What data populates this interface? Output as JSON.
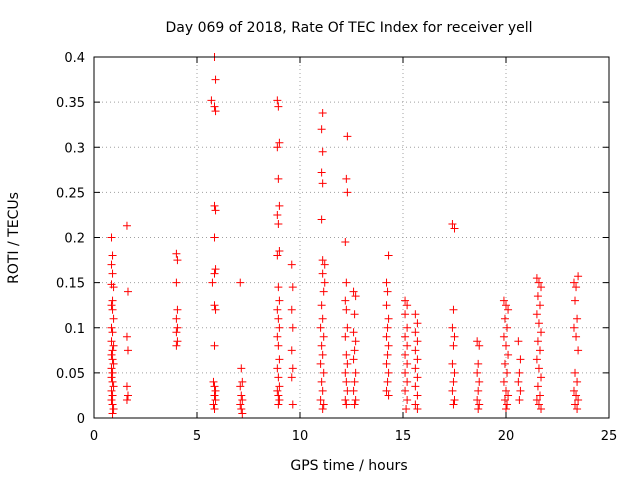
{
  "chart_data": {
    "type": "scatter",
    "title": "Day 069 of 2018, Rate Of TEC Index for receiver yell",
    "xlabel": "GPS time / hours",
    "ylabel": "ROTI / TECUs",
    "xlim": [
      0,
      25
    ],
    "ylim": [
      0,
      0.4
    ],
    "xticks": [
      0,
      5,
      10,
      15,
      20,
      25
    ],
    "xtick_labels": [
      "0",
      "5",
      "10",
      "15",
      "20",
      "25"
    ],
    "yticks": [
      0,
      0.05,
      0.1,
      0.15,
      0.2,
      0.25,
      0.3,
      0.35,
      0.4
    ],
    "ytick_labels": [
      "0",
      "0.05",
      "0.1",
      "0.15",
      "0.2",
      "0.25",
      "0.3",
      "0.35",
      "0.4"
    ],
    "grid": true,
    "marker": "+",
    "color": "#ff0000",
    "series": [
      {
        "name": "ROTI",
        "points": [
          [
            0.85,
            0.2
          ],
          [
            0.9,
            0.18
          ],
          [
            0.85,
            0.17
          ],
          [
            0.9,
            0.16
          ],
          [
            0.85,
            0.148
          ],
          [
            0.95,
            0.145
          ],
          [
            0.9,
            0.13
          ],
          [
            0.85,
            0.125
          ],
          [
            0.9,
            0.12
          ],
          [
            0.95,
            0.11
          ],
          [
            0.85,
            0.1
          ],
          [
            0.9,
            0.095
          ],
          [
            0.85,
            0.085
          ],
          [
            0.95,
            0.08
          ],
          [
            0.9,
            0.075
          ],
          [
            0.85,
            0.07
          ],
          [
            0.9,
            0.065
          ],
          [
            0.95,
            0.06
          ],
          [
            0.85,
            0.055
          ],
          [
            0.9,
            0.05
          ],
          [
            0.85,
            0.045
          ],
          [
            0.9,
            0.04
          ],
          [
            0.95,
            0.035
          ],
          [
            0.85,
            0.03
          ],
          [
            0.9,
            0.025
          ],
          [
            0.85,
            0.02
          ],
          [
            0.9,
            0.015
          ],
          [
            0.95,
            0.01
          ],
          [
            0.9,
            0.005
          ],
          [
            1.6,
            0.213
          ],
          [
            1.65,
            0.14
          ],
          [
            1.6,
            0.09
          ],
          [
            1.65,
            0.075
          ],
          [
            1.6,
            0.035
          ],
          [
            1.65,
            0.025
          ],
          [
            1.6,
            0.02
          ],
          [
            4.0,
            0.182
          ],
          [
            4.05,
            0.175
          ],
          [
            4.0,
            0.15
          ],
          [
            4.05,
            0.12
          ],
          [
            4.0,
            0.11
          ],
          [
            4.05,
            0.1
          ],
          [
            4.0,
            0.095
          ],
          [
            4.05,
            0.085
          ],
          [
            4.0,
            0.08
          ],
          [
            5.7,
            0.352
          ],
          [
            5.85,
            0.4
          ],
          [
            5.9,
            0.375
          ],
          [
            5.85,
            0.345
          ],
          [
            5.9,
            0.34
          ],
          [
            5.85,
            0.235
          ],
          [
            5.9,
            0.23
          ],
          [
            5.85,
            0.2
          ],
          [
            5.9,
            0.165
          ],
          [
            5.85,
            0.16
          ],
          [
            5.75,
            0.15
          ],
          [
            5.85,
            0.125
          ],
          [
            5.9,
            0.12
          ],
          [
            5.85,
            0.08
          ],
          [
            5.8,
            0.04
          ],
          [
            5.85,
            0.035
          ],
          [
            5.9,
            0.03
          ],
          [
            5.85,
            0.025
          ],
          [
            5.9,
            0.02
          ],
          [
            5.8,
            0.015
          ],
          [
            5.85,
            0.01
          ],
          [
            7.1,
            0.15
          ],
          [
            7.15,
            0.055
          ],
          [
            7.2,
            0.04
          ],
          [
            7.1,
            0.035
          ],
          [
            7.15,
            0.025
          ],
          [
            7.2,
            0.02
          ],
          [
            7.1,
            0.015
          ],
          [
            7.15,
            0.01
          ],
          [
            7.2,
            0.005
          ],
          [
            8.9,
            0.352
          ],
          [
            8.95,
            0.345
          ],
          [
            9.0,
            0.305
          ],
          [
            8.9,
            0.3
          ],
          [
            8.95,
            0.265
          ],
          [
            9.0,
            0.235
          ],
          [
            8.9,
            0.225
          ],
          [
            8.95,
            0.215
          ],
          [
            9.0,
            0.185
          ],
          [
            8.9,
            0.18
          ],
          [
            8.95,
            0.145
          ],
          [
            9.0,
            0.13
          ],
          [
            8.9,
            0.12
          ],
          [
            8.95,
            0.11
          ],
          [
            9.0,
            0.1
          ],
          [
            8.9,
            0.09
          ],
          [
            8.95,
            0.08
          ],
          [
            9.0,
            0.065
          ],
          [
            8.9,
            0.055
          ],
          [
            8.95,
            0.045
          ],
          [
            9.0,
            0.035
          ],
          [
            8.9,
            0.03
          ],
          [
            8.95,
            0.025
          ],
          [
            9.0,
            0.02
          ],
          [
            8.95,
            0.015
          ],
          [
            9.6,
            0.17
          ],
          [
            9.65,
            0.145
          ],
          [
            9.6,
            0.12
          ],
          [
            9.65,
            0.1
          ],
          [
            9.6,
            0.075
          ],
          [
            9.65,
            0.055
          ],
          [
            9.6,
            0.045
          ],
          [
            9.65,
            0.015
          ],
          [
            11.1,
            0.338
          ],
          [
            11.05,
            0.32
          ],
          [
            11.1,
            0.295
          ],
          [
            11.05,
            0.272
          ],
          [
            11.1,
            0.26
          ],
          [
            11.05,
            0.22
          ],
          [
            11.1,
            0.175
          ],
          [
            11.2,
            0.17
          ],
          [
            11.1,
            0.16
          ],
          [
            11.2,
            0.15
          ],
          [
            11.15,
            0.14
          ],
          [
            11.05,
            0.125
          ],
          [
            11.1,
            0.11
          ],
          [
            11.0,
            0.1
          ],
          [
            11.15,
            0.09
          ],
          [
            11.05,
            0.08
          ],
          [
            11.1,
            0.07
          ],
          [
            11.0,
            0.06
          ],
          [
            11.15,
            0.05
          ],
          [
            11.05,
            0.04
          ],
          [
            11.1,
            0.03
          ],
          [
            11.0,
            0.02
          ],
          [
            11.15,
            0.015
          ],
          [
            11.1,
            0.01
          ],
          [
            12.2,
            0.195
          ],
          [
            12.3,
            0.312
          ],
          [
            12.25,
            0.265
          ],
          [
            12.3,
            0.25
          ],
          [
            12.25,
            0.15
          ],
          [
            12.2,
            0.13
          ],
          [
            12.25,
            0.12
          ],
          [
            12.3,
            0.1
          ],
          [
            12.2,
            0.09
          ],
          [
            12.25,
            0.07
          ],
          [
            12.3,
            0.06
          ],
          [
            12.2,
            0.05
          ],
          [
            12.25,
            0.04
          ],
          [
            12.3,
            0.03
          ],
          [
            12.2,
            0.02
          ],
          [
            12.25,
            0.015
          ],
          [
            12.6,
            0.14
          ],
          [
            12.7,
            0.135
          ],
          [
            12.65,
            0.115
          ],
          [
            12.6,
            0.095
          ],
          [
            12.7,
            0.085
          ],
          [
            12.65,
            0.075
          ],
          [
            12.6,
            0.065
          ],
          [
            12.7,
            0.05
          ],
          [
            12.65,
            0.04
          ],
          [
            12.6,
            0.03
          ],
          [
            12.7,
            0.02
          ],
          [
            12.65,
            0.015
          ],
          [
            14.2,
            0.15
          ],
          [
            14.3,
            0.18
          ],
          [
            14.25,
            0.14
          ],
          [
            14.2,
            0.125
          ],
          [
            14.3,
            0.11
          ],
          [
            14.25,
            0.1
          ],
          [
            14.2,
            0.09
          ],
          [
            14.3,
            0.08
          ],
          [
            14.25,
            0.07
          ],
          [
            14.2,
            0.06
          ],
          [
            14.3,
            0.05
          ],
          [
            14.25,
            0.04
          ],
          [
            14.2,
            0.03
          ],
          [
            14.3,
            0.025
          ],
          [
            15.1,
            0.13
          ],
          [
            15.2,
            0.125
          ],
          [
            15.1,
            0.115
          ],
          [
            15.2,
            0.1
          ],
          [
            15.1,
            0.09
          ],
          [
            15.2,
            0.08
          ],
          [
            15.1,
            0.07
          ],
          [
            15.2,
            0.06
          ],
          [
            15.1,
            0.05
          ],
          [
            15.2,
            0.04
          ],
          [
            15.1,
            0.03
          ],
          [
            15.2,
            0.02
          ],
          [
            15.15,
            0.01
          ],
          [
            15.6,
            0.115
          ],
          [
            15.7,
            0.105
          ],
          [
            15.6,
            0.095
          ],
          [
            15.7,
            0.085
          ],
          [
            15.6,
            0.075
          ],
          [
            15.7,
            0.065
          ],
          [
            15.6,
            0.055
          ],
          [
            15.7,
            0.045
          ],
          [
            15.6,
            0.035
          ],
          [
            15.7,
            0.025
          ],
          [
            15.6,
            0.015
          ],
          [
            15.7,
            0.01
          ],
          [
            17.4,
            0.215
          ],
          [
            17.5,
            0.21
          ],
          [
            17.45,
            0.12
          ],
          [
            17.4,
            0.1
          ],
          [
            17.5,
            0.09
          ],
          [
            17.45,
            0.08
          ],
          [
            17.4,
            0.06
          ],
          [
            17.5,
            0.05
          ],
          [
            17.45,
            0.04
          ],
          [
            17.4,
            0.03
          ],
          [
            17.5,
            0.02
          ],
          [
            17.45,
            0.015
          ],
          [
            18.6,
            0.085
          ],
          [
            18.7,
            0.08
          ],
          [
            18.65,
            0.06
          ],
          [
            18.6,
            0.05
          ],
          [
            18.7,
            0.04
          ],
          [
            18.65,
            0.03
          ],
          [
            18.6,
            0.02
          ],
          [
            18.7,
            0.015
          ],
          [
            18.65,
            0.01
          ],
          [
            19.9,
            0.13
          ],
          [
            20.0,
            0.125
          ],
          [
            20.1,
            0.12
          ],
          [
            19.95,
            0.11
          ],
          [
            20.05,
            0.1
          ],
          [
            19.9,
            0.09
          ],
          [
            20.0,
            0.08
          ],
          [
            20.1,
            0.07
          ],
          [
            19.95,
            0.06
          ],
          [
            20.05,
            0.05
          ],
          [
            19.9,
            0.04
          ],
          [
            20.0,
            0.03
          ],
          [
            20.1,
            0.025
          ],
          [
            19.95,
            0.02
          ],
          [
            20.05,
            0.015
          ],
          [
            20.0,
            0.01
          ],
          [
            20.6,
            0.085
          ],
          [
            20.7,
            0.065
          ],
          [
            20.65,
            0.05
          ],
          [
            20.6,
            0.04
          ],
          [
            20.7,
            0.03
          ],
          [
            20.65,
            0.02
          ],
          [
            21.5,
            0.155
          ],
          [
            21.6,
            0.15
          ],
          [
            21.7,
            0.145
          ],
          [
            21.55,
            0.135
          ],
          [
            21.65,
            0.125
          ],
          [
            21.5,
            0.115
          ],
          [
            21.6,
            0.105
          ],
          [
            21.7,
            0.095
          ],
          [
            21.55,
            0.085
          ],
          [
            21.65,
            0.075
          ],
          [
            21.5,
            0.065
          ],
          [
            21.6,
            0.055
          ],
          [
            21.7,
            0.045
          ],
          [
            21.55,
            0.035
          ],
          [
            21.65,
            0.025
          ],
          [
            21.5,
            0.02
          ],
          [
            21.6,
            0.015
          ],
          [
            21.7,
            0.01
          ],
          [
            23.3,
            0.15
          ],
          [
            23.4,
            0.145
          ],
          [
            23.5,
            0.157
          ],
          [
            23.35,
            0.13
          ],
          [
            23.45,
            0.11
          ],
          [
            23.3,
            0.1
          ],
          [
            23.4,
            0.09
          ],
          [
            23.5,
            0.075
          ],
          [
            23.35,
            0.05
          ],
          [
            23.45,
            0.04
          ],
          [
            23.3,
            0.03
          ],
          [
            23.4,
            0.025
          ],
          [
            23.5,
            0.02
          ],
          [
            23.35,
            0.015
          ],
          [
            23.45,
            0.01
          ]
        ]
      }
    ]
  }
}
